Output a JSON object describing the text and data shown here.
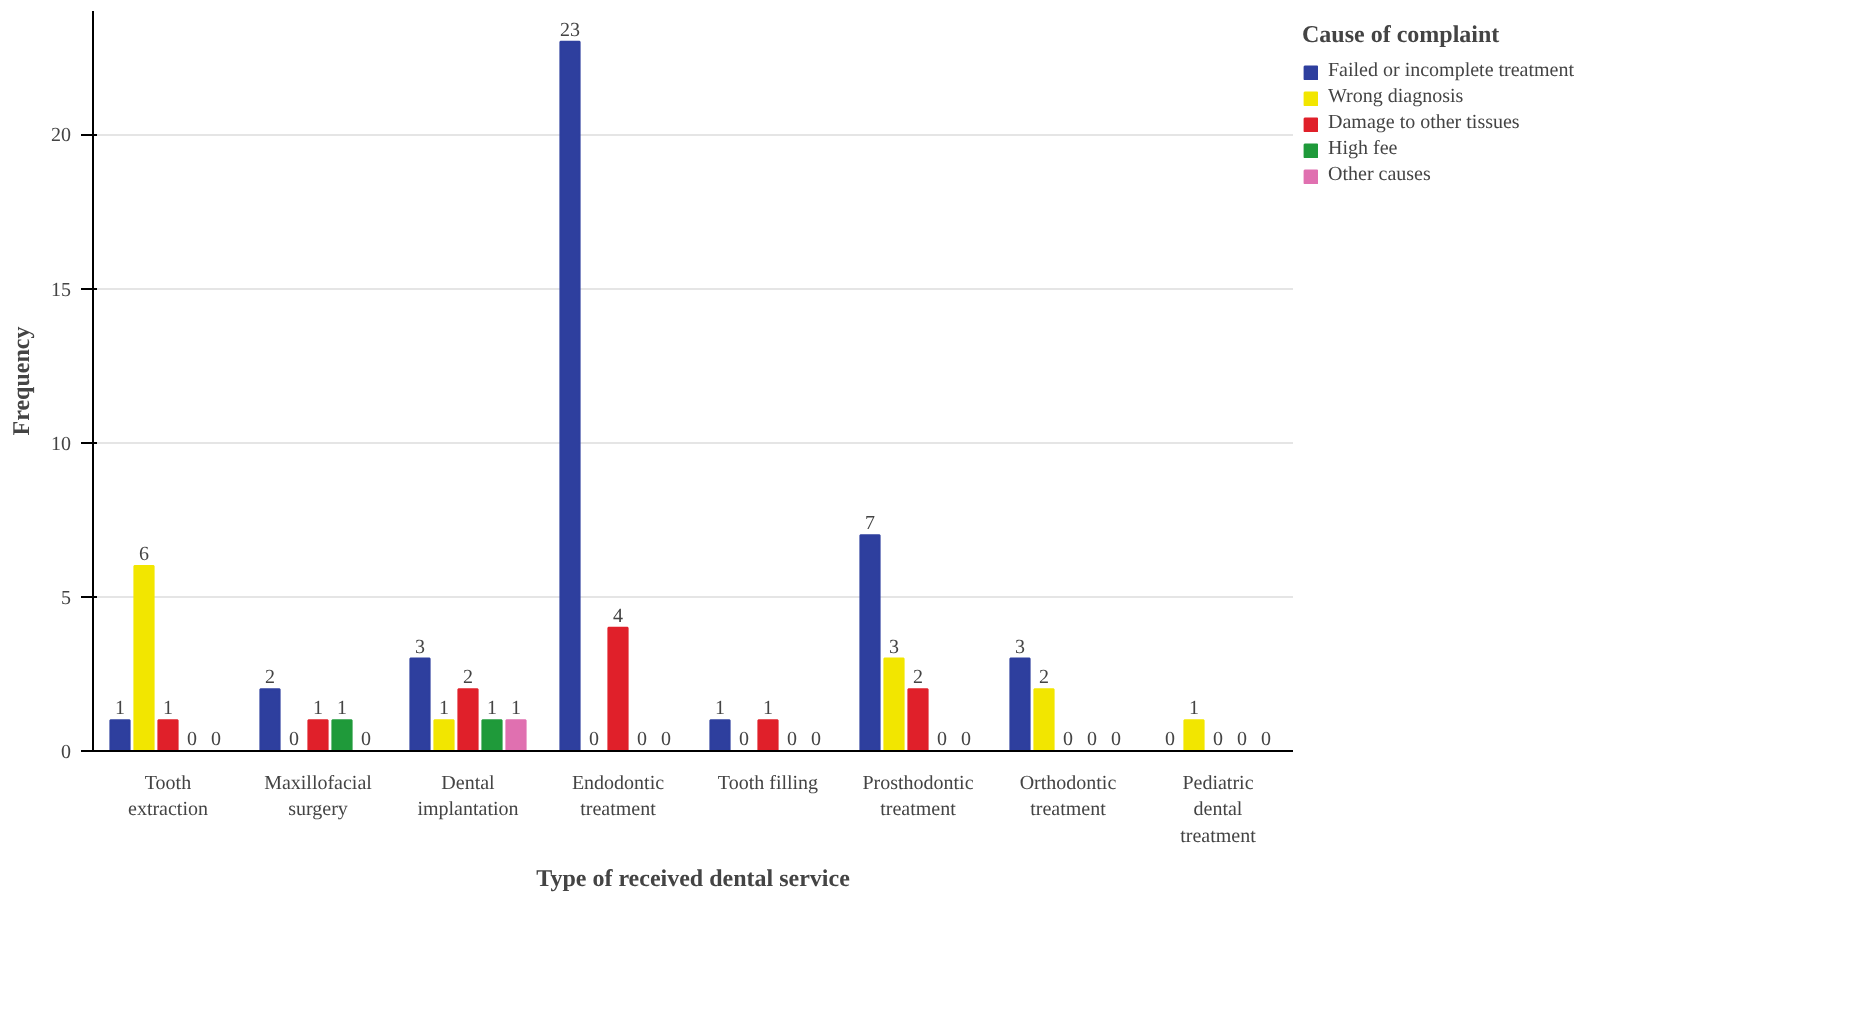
{
  "chart_data": {
    "type": "bar",
    "xlabel": "Type of received dental service",
    "ylabel": "Frequency",
    "legend_title": "Cause of complaint",
    "categories": [
      "Tooth extraction",
      "Maxillofacial surgery",
      "Dental implantation",
      "Endodontic treatment",
      "Tooth filling",
      "Prosthodontic treatment",
      "Orthodontic treatment",
      "Pediatric dental treatment"
    ],
    "series": [
      {
        "name": "Failed or incomplete treatment",
        "color": "#2e3f9e",
        "values": [
          1,
          2,
          3,
          23,
          1,
          7,
          3,
          0
        ]
      },
      {
        "name": "Wrong diagnosis",
        "color": "#f2e600",
        "values": [
          6,
          0,
          1,
          0,
          0,
          3,
          2,
          1
        ]
      },
      {
        "name": "Damage to other tissues",
        "color": "#e0202a",
        "values": [
          1,
          1,
          2,
          4,
          1,
          2,
          0,
          0
        ]
      },
      {
        "name": "High fee",
        "color": "#1f9a3a",
        "values": [
          0,
          1,
          1,
          0,
          0,
          0,
          0,
          0
        ]
      },
      {
        "name": "Other causes",
        "color": "#e070b0",
        "values": [
          0,
          0,
          1,
          0,
          0,
          0,
          0,
          0
        ]
      }
    ],
    "ylim": [
      0,
      24
    ],
    "yticks": [
      0,
      5,
      10,
      15,
      20
    ],
    "grid": "y",
    "legend": "right",
    "data_labels": true
  }
}
